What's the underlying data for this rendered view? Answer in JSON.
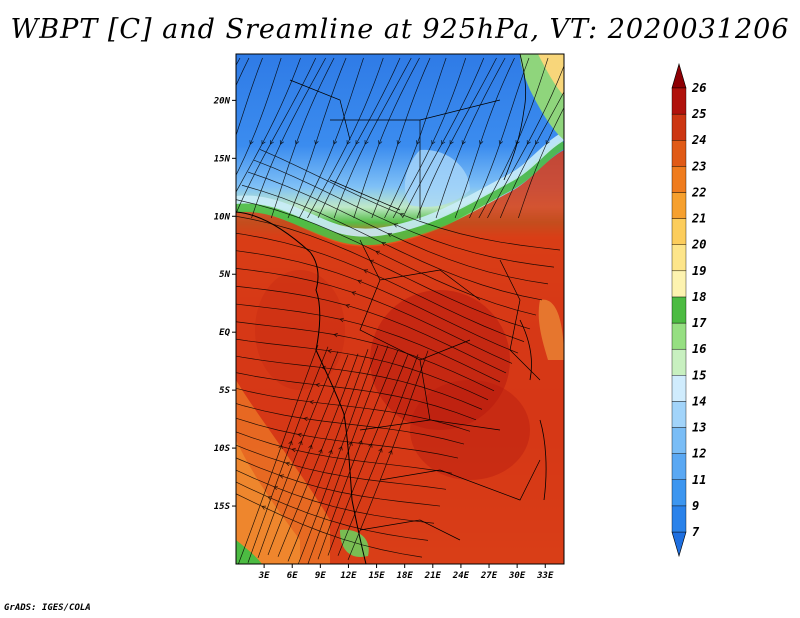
{
  "title": "WBPT [C] and Sreamline at 925hPa, VT: 2020031206",
  "credit": "GrADS: IGES/COLA",
  "map": {
    "lon_range": [
      0,
      35
    ],
    "lat_range": [
      -20,
      24
    ],
    "lat_ticks": [
      {
        "label": "20N",
        "value": 20
      },
      {
        "label": "15N",
        "value": 15
      },
      {
        "label": "10N",
        "value": 10
      },
      {
        "label": "5N",
        "value": 5
      },
      {
        "label": "EQ",
        "value": 0
      },
      {
        "label": "5S",
        "value": -5
      },
      {
        "label": "10S",
        "value": -10
      },
      {
        "label": "15S",
        "value": -15
      }
    ],
    "lon_ticks": [
      {
        "label": "3E",
        "value": 3
      },
      {
        "label": "6E",
        "value": 6
      },
      {
        "label": "9E",
        "value": 9
      },
      {
        "label": "12E",
        "value": 12
      },
      {
        "label": "15E",
        "value": 15
      },
      {
        "label": "18E",
        "value": 18
      },
      {
        "label": "21E",
        "value": 21
      },
      {
        "label": "24E",
        "value": 24
      },
      {
        "label": "27E",
        "value": 27
      },
      {
        "label": "30E",
        "value": 30
      },
      {
        "label": "33E",
        "value": 33
      }
    ]
  },
  "colorbar": {
    "levels": [
      "7",
      "9",
      "11",
      "12",
      "13",
      "14",
      "15",
      "16",
      "17",
      "18",
      "19",
      "20",
      "21",
      "22",
      "23",
      "24",
      "25",
      "26"
    ],
    "colors": [
      "#1e6fe0",
      "#2a82ea",
      "#3c96f0",
      "#5aa8f3",
      "#7abdf6",
      "#a2d4fa",
      "#d0ecfd",
      "#c8f0c0",
      "#96df82",
      "#4cbb42",
      "#fdf3b0",
      "#fde58a",
      "#fccd5c",
      "#f6a02e",
      "#ef7c1e",
      "#e05a16",
      "#cc3612",
      "#b0120c",
      "#8e0004"
    ]
  }
}
